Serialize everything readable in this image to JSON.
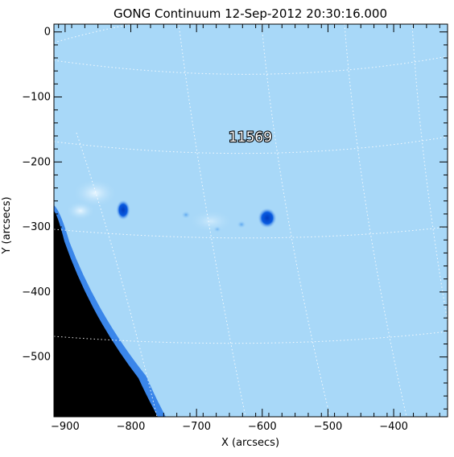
{
  "title": "GONG Continuum 12-Sep-2012 20:30:16.000",
  "region_label": "11569",
  "axes": {
    "xlabel": "X (arcsecs)",
    "ylabel": "Y (arcsecs)",
    "xlim": [
      -917,
      -318
    ],
    "ylim": [
      -592,
      12
    ],
    "xticks": [
      -900,
      -800,
      -700,
      -600,
      -500,
      -400
    ],
    "yticks": [
      0,
      -100,
      -200,
      -300,
      -400,
      -500
    ]
  },
  "colors": {
    "disk": "#a8d8f8",
    "limb_dark": "#1e6fe0",
    "space": "#000000",
    "sunspot_umbra": "#0050d8",
    "grid": "#ffffff"
  }
}
